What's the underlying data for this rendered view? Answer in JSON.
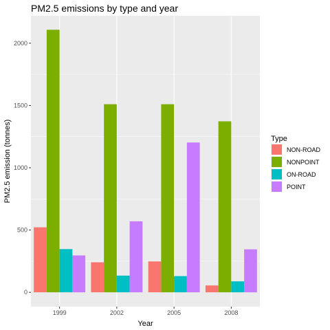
{
  "chart_data": {
    "type": "bar",
    "title": "PM2.5 emissions by type and year",
    "xlabel": "Year",
    "ylabel": "PM2.5 emission (tonnes)",
    "categories": [
      "1999",
      "2002",
      "2005",
      "2008"
    ],
    "ylim": [
      -115,
      2220
    ],
    "yticks": [
      0,
      500,
      1000,
      1500,
      2000
    ],
    "grid": true,
    "legend_title": "Type",
    "legend_position": "right",
    "series": [
      {
        "name": "NON-ROAD",
        "color": "#F8766D",
        "values": [
          522,
          241,
          248,
          55
        ]
      },
      {
        "name": "NONPOINT",
        "color": "#7CAE00",
        "values": [
          2108,
          1510,
          1510,
          1373
        ]
      },
      {
        "name": "ON-ROAD",
        "color": "#00BFC4",
        "values": [
          347,
          134,
          130,
          88
        ]
      },
      {
        "name": "POINT",
        "color": "#C77CFF",
        "values": [
          296,
          570,
          1203,
          345
        ]
      }
    ]
  }
}
